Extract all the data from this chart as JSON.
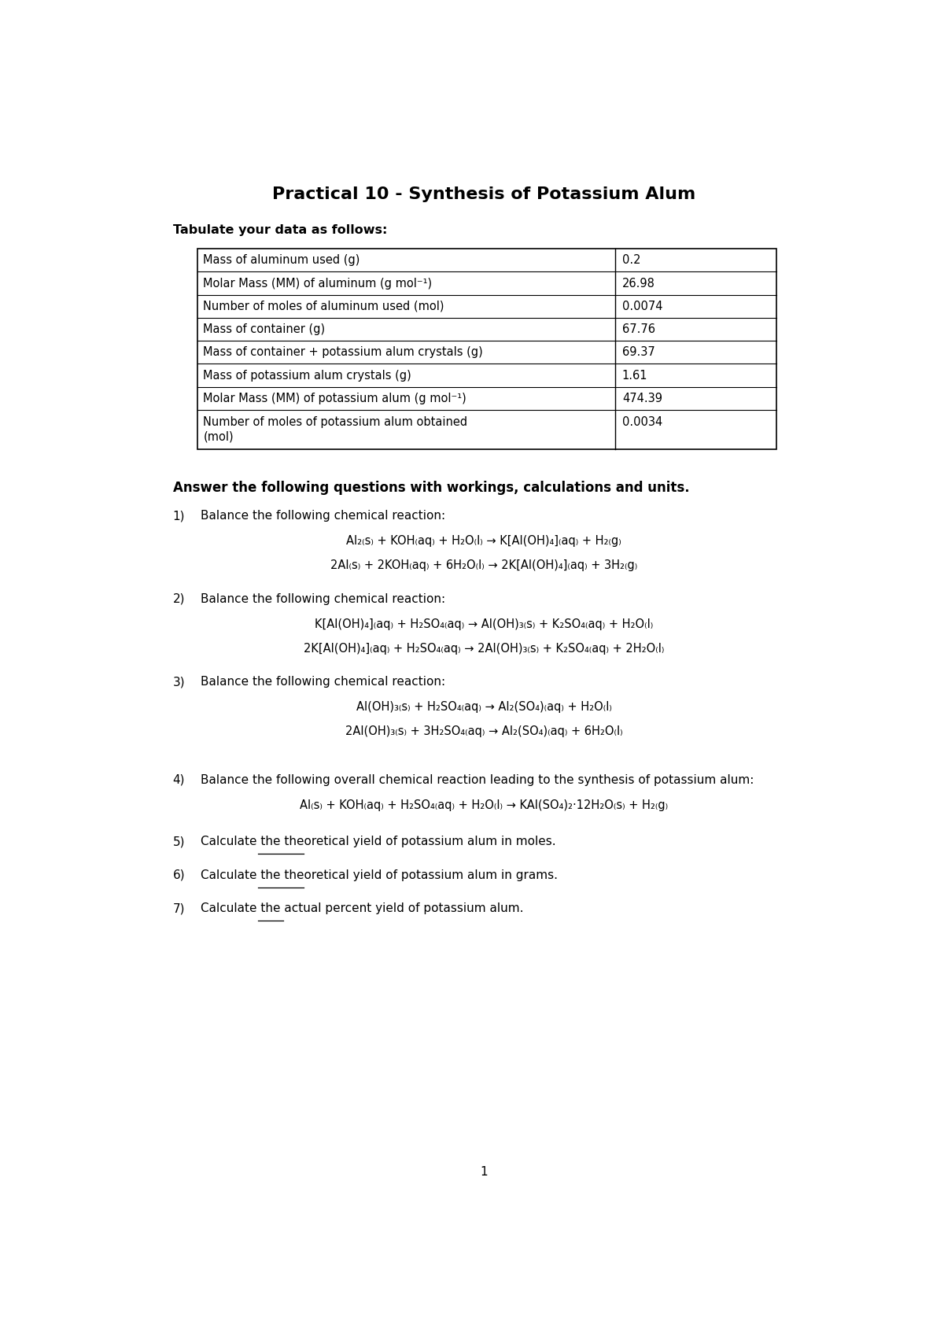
{
  "title": "Practical 10 - Synthesis of Potassium Alum",
  "subtitle": "Tabulate your data as follows:",
  "table_rows": [
    [
      "Mass of aluminum used (g)",
      "0.2"
    ],
    [
      "Molar Mass (MM) of aluminum (g mol⁻¹)",
      "26.98"
    ],
    [
      "Number of moles of aluminum used (mol)",
      "0.0074"
    ],
    [
      "Mass of container (g)",
      "67.76"
    ],
    [
      "Mass of container + potassium alum crystals (g)",
      "69.37"
    ],
    [
      "Mass of potassium alum crystals (g)",
      "1.61"
    ],
    [
      "Molar Mass (MM) of potassium alum (g mol⁻¹)",
      "474.39"
    ],
    [
      "Number of moles of potassium alum obtained\n(mol)",
      "0.0034"
    ]
  ],
  "section_header": "Answer the following questions with workings, calculations and units.",
  "q1_text": "Balance the following chemical reaction:",
  "q1_unbal": "Al₂₍s₎ + KOH₍aq₎ + H₂O₍l₎ → K[Al(OH)₄]₍aq₎ + H₂₍g₎",
  "q1_bal": "2Al₍s₎ + 2KOH₍aq₎ + 6H₂O₍l₎ → 2K[Al(OH)₄]₍aq₎ + 3H₂₍g₎",
  "q2_text": "Balance the following chemical reaction:",
  "q2_unbal": "K[Al(OH)₄]₍aq₎ + H₂SO₄₍aq₎ → Al(OH)₃₍s₎ + K₂SO₄₍aq₎ + H₂O₍l₎",
  "q2_bal": "2K[Al(OH)₄]₍aq₎ + H₂SO₄₍aq₎ → 2Al(OH)₃₍s₎ + K₂SO₄₍aq₎ + 2H₂O₍l₎",
  "q3_text": "Balance the following chemical reaction:",
  "q3_unbal": "Al(OH)₃₍s₎ + H₂SO₄₍aq₎ → Al₂(SO₄)₍aq₎ + H₂O₍l₎",
  "q3_bal": "2Al(OH)₃₍s₎ + 3H₂SO₄₍aq₎ → Al₂(SO₄)₍aq₎ + 6H₂O₍l₎",
  "q4_text": "Balance the following overall chemical reaction leading to the synthesis of potassium alum:",
  "q4_bal": "Al₍s₎ + KOH₍aq₎ + H₂SO₄₍aq₎ + H₂O₍l₎ → KAl(SO₄)₂·12H₂O₍s₎ + H₂₍g₎",
  "q5_before": "Calculate the ",
  "q5_underline": "theoretical",
  "q5_after": " yield of potassium alum in moles.",
  "q6_before": "Calculate the ",
  "q6_underline": "theoretical",
  "q6_after": " yield of potassium alum in grams.",
  "q7_before": "Calculate the ",
  "q7_underline": "actual",
  "q7_after": " percent yield of potassium alum.",
  "page_number": "1",
  "bg_color": "#ffffff",
  "text_color": "#000000"
}
